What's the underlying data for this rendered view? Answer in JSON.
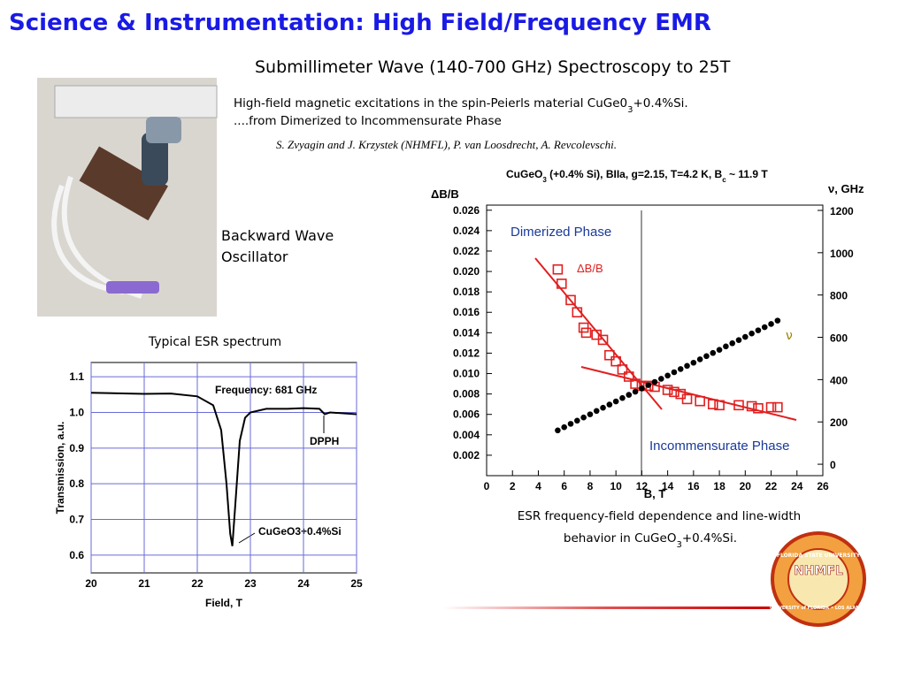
{
  "header": {
    "title": "Science & Instrumentation: High Field/Frequency EMR",
    "subtitle": "Submillimeter Wave (140-700 GHz) Spectroscopy to 25T"
  },
  "description": {
    "line1": [
      "High-field magnetic excitations in the spin-Peierls material  CuGe0",
      "3",
      "+0.4%Si."
    ],
    "line2": "....from Dimerized to Incommensurate Phase",
    "authors": "S. Zvyagin and J. Krzystek (NHMFL), P. van Loosdrecht, A. Revcolevschi."
  },
  "photo": {
    "label": [
      "Backward Wave",
      "Oscillator"
    ]
  },
  "caption": {
    "line1": "ESR frequency-field dependence and line-width",
    "line2": [
      "behavior in CuGeO",
      "3",
      "+0.4%Si."
    ]
  },
  "logo": {
    "name": "NHMFL",
    "ring_top": "FLORIDA STATE UNIVERSITY",
    "ring_bottom": "UNIVERSITY of FLORIDA • LOS ALAMOS"
  },
  "chart_data": [
    {
      "type": "line",
      "title": "Typical ESR spectrum",
      "x_label": "Field, T",
      "y_label": "Transmission, a.u.",
      "x": [
        20,
        21,
        21.5,
        22,
        22.3,
        22.45,
        22.55,
        22.62,
        22.66,
        22.72,
        22.8,
        22.9,
        23,
        23.3,
        23.7,
        24,
        24.3,
        24.4,
        24.5,
        25
      ],
      "values": [
        1.055,
        1.052,
        1.053,
        1.045,
        1.02,
        0.95,
        0.8,
        0.66,
        0.625,
        0.75,
        0.92,
        0.985,
        1.0,
        1.01,
        1.01,
        1.012,
        1.01,
        0.995,
        1.0,
        0.995
      ],
      "color": "#000000",
      "grid": true,
      "grid_color": "#6a6ad8",
      "xlim": [
        20,
        25
      ],
      "xticks": [
        20,
        21,
        22,
        23,
        24,
        25
      ],
      "ylim": [
        0.55,
        1.14
      ],
      "yticks": [
        0.6,
        0.7,
        0.8,
        0.9,
        {
          "value": 1,
          "label": "1.0"
        },
        1.1
      ],
      "annotations": [
        "Frequency: 681 GHz",
        "DPPH",
        "CuGeO3+0.4%Si"
      ]
    },
    {
      "type": "scatter",
      "title": [
        "CuGeO",
        "3",
        " (+0.4% Si), BIIa, g=2.15, T=4.2 K, B",
        "c",
        " ~ 11.9 T"
      ],
      "x_label": "B, T",
      "y_label": "ΔB/B",
      "y2_label": "ν, GHz",
      "xlim": [
        0,
        26
      ],
      "xticks": [
        0,
        2,
        4,
        6,
        8,
        10,
        12,
        14,
        16,
        18,
        20,
        22,
        24,
        26
      ],
      "ylim": [
        0,
        0.0265
      ],
      "yticks": [
        0.002,
        0.004,
        0.006,
        0.008,
        {
          "value": 0.01,
          "label": "0.010"
        },
        0.012,
        0.014,
        0.016,
        0.018,
        {
          "value": 0.02,
          "label": "0.020"
        },
        0.022,
        0.024,
        0.026
      ],
      "y2lim": [
        -54,
        1225
      ],
      "y2ticks": [
        0,
        200,
        400,
        600,
        800,
        1000,
        1200
      ],
      "annotations": [
        "Dimerized Phase",
        "Incommensurate Phase"
      ],
      "series": [
        {
          "name": "ΔB/B",
          "color": "#e02020",
          "marker": "square",
          "x": [
            5.5,
            5.8,
            6.5,
            7.0,
            7.5,
            7.7,
            8.5,
            9.0,
            9.5,
            10,
            10.5,
            11,
            11.5,
            12,
            12.5,
            13,
            14,
            14.5,
            15,
            15.5,
            16.5,
            17.5,
            18,
            19.5,
            20.5,
            21,
            22,
            22.5
          ],
          "values": [
            0.0202,
            0.0188,
            0.0172,
            0.016,
            0.0145,
            0.014,
            0.0138,
            0.0133,
            0.0118,
            0.0112,
            0.0104,
            0.0097,
            0.009,
            0.0088,
            0.0088,
            0.0087,
            0.0084,
            0.0082,
            0.008,
            0.0075,
            0.0073,
            0.007,
            0.0069,
            0.0069,
            0.0068,
            0.0066,
            0.0067,
            0.0067
          ]
        },
        {
          "name": "ν",
          "color": "#000000",
          "marker": "circle",
          "axis": "y2",
          "x": [
            5.5,
            6,
            6.5,
            7,
            7.5,
            8,
            8.5,
            9,
            9.5,
            10,
            10.5,
            11,
            11.5,
            12,
            12.5,
            13,
            13.5,
            14,
            14.5,
            15,
            15.5,
            16,
            16.5,
            17,
            17.5,
            18,
            18.5,
            19,
            19.5,
            20,
            20.5,
            21,
            21.5,
            22,
            22.5
          ],
          "values": [
            160,
            175,
            191,
            206,
            221,
            236,
            252,
            267,
            282,
            297,
            313,
            328,
            343,
            358,
            374,
            389,
            404,
            419,
            435,
            450,
            465,
            480,
            496,
            511,
            526,
            541,
            557,
            572,
            587,
            602,
            618,
            633,
            648,
            663,
            679
          ]
        }
      ]
    }
  ]
}
